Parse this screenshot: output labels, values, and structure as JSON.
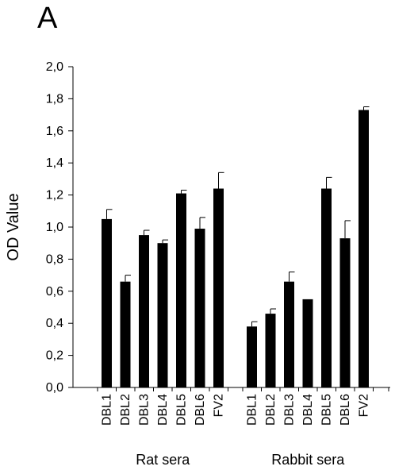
{
  "panel_label": "A",
  "chart_data": {
    "type": "bar",
    "ylabel": "OD Value",
    "ylim": [
      0,
      2.0
    ],
    "yticks": [
      "0,0",
      "0,2",
      "0,4",
      "0,6",
      "0,8",
      "1,0",
      "1,2",
      "1,4",
      "1,6",
      "1,8",
      "2,0"
    ],
    "grid": false,
    "bar_color": "#000000",
    "groups": [
      {
        "label": "Rat sera",
        "categories": [
          "DBL1",
          "DBL2",
          "DBL3",
          "DBL4",
          "DBL5",
          "DBL6",
          "FV2"
        ],
        "values": [
          1.05,
          0.66,
          0.95,
          0.9,
          1.21,
          0.99,
          1.24
        ],
        "errors": [
          0.06,
          0.04,
          0.03,
          0.02,
          0.02,
          0.07,
          0.1
        ]
      },
      {
        "label": "Rabbit sera",
        "categories": [
          "DBL1",
          "DBL2",
          "DBL3",
          "DBL4",
          "DBL5",
          "DBL6",
          "FV2"
        ],
        "values": [
          0.38,
          0.46,
          0.66,
          0.55,
          1.24,
          0.93,
          1.73
        ],
        "errors": [
          0.03,
          0.03,
          0.06,
          0.0,
          0.07,
          0.11,
          0.02
        ]
      }
    ]
  }
}
